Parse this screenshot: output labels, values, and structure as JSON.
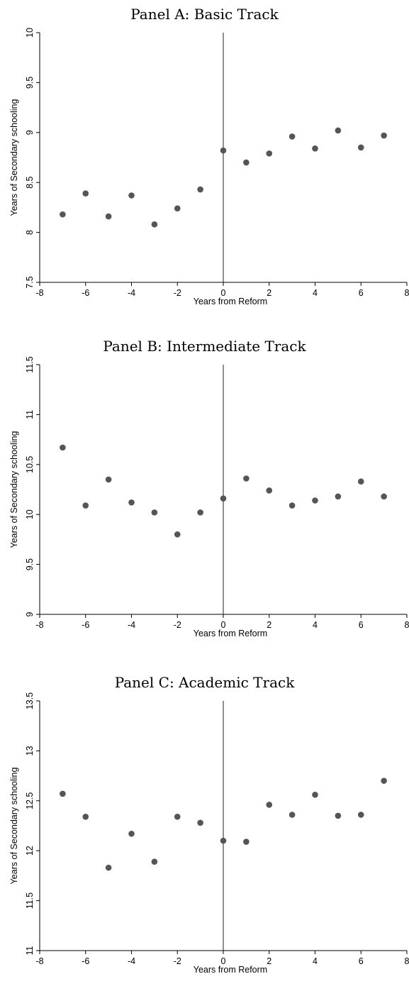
{
  "chart_data": [
    {
      "type": "scatter",
      "title": "Panel A: Basic Track",
      "xlabel": "Years from Reform",
      "ylabel": "Years of Secondary schooling",
      "xlim": [
        -8,
        8
      ],
      "ylim": [
        7.5,
        10
      ],
      "xticks": [
        -8,
        -6,
        -4,
        -2,
        0,
        2,
        4,
        6,
        8
      ],
      "yticks": [
        7.5,
        8,
        8.5,
        9,
        9.5,
        10
      ],
      "ytick_labels": [
        "7.5",
        "8",
        "8.5",
        "9",
        "9.5",
        "10"
      ],
      "vline_x": 0,
      "x": [
        -7,
        -6,
        -5,
        -4,
        -3,
        -2,
        -1,
        0,
        1,
        2,
        3,
        4,
        5,
        6,
        7
      ],
      "y": [
        8.18,
        8.39,
        8.16,
        8.37,
        8.08,
        8.24,
        8.43,
        8.82,
        8.7,
        8.79,
        8.96,
        8.84,
        9.02,
        8.85,
        8.97
      ],
      "grid": false,
      "marker_color": "#555555"
    },
    {
      "type": "scatter",
      "title": "Panel B: Intermediate Track",
      "xlabel": "Years from Reform",
      "ylabel": "Years of Secondary schooling",
      "xlim": [
        -8,
        8
      ],
      "ylim": [
        9,
        11.5
      ],
      "xticks": [
        -8,
        -6,
        -4,
        -2,
        0,
        2,
        4,
        6,
        8
      ],
      "yticks": [
        9,
        9.5,
        10,
        10.5,
        11,
        11.5
      ],
      "ytick_labels": [
        "9",
        "9.5",
        "10",
        "10.5",
        "11",
        "11.5"
      ],
      "vline_x": 0,
      "x": [
        -7,
        -6,
        -5,
        -4,
        -3,
        -2,
        -1,
        0,
        1,
        2,
        3,
        4,
        5,
        6,
        7
      ],
      "y": [
        10.67,
        10.09,
        10.35,
        10.12,
        10.02,
        9.8,
        10.02,
        10.16,
        10.36,
        10.24,
        10.09,
        10.14,
        10.18,
        10.33,
        10.18
      ],
      "grid": false,
      "marker_color": "#555555"
    },
    {
      "type": "scatter",
      "title": "Panel C: Academic Track",
      "xlabel": "Years from Reform",
      "ylabel": "Years of Secondary schooling",
      "xlim": [
        -8,
        8
      ],
      "ylim": [
        11,
        13.5
      ],
      "xticks": [
        -8,
        -6,
        -4,
        -2,
        0,
        2,
        4,
        6,
        8
      ],
      "yticks": [
        11,
        11.5,
        12,
        12.5,
        13,
        13.5
      ],
      "ytick_labels": [
        "11",
        "11.5",
        "12",
        "12.5",
        "13",
        "13.5"
      ],
      "vline_x": 0,
      "x": [
        -7,
        -6,
        -5,
        -4,
        -3,
        -2,
        -1,
        0,
        1,
        2,
        3,
        4,
        5,
        6,
        7
      ],
      "y": [
        12.57,
        12.34,
        11.83,
        12.17,
        11.89,
        12.34,
        12.28,
        12.1,
        12.09,
        12.46,
        12.36,
        12.56,
        12.35,
        12.36,
        12.7
      ],
      "grid": false,
      "marker_color": "#555555"
    }
  ]
}
